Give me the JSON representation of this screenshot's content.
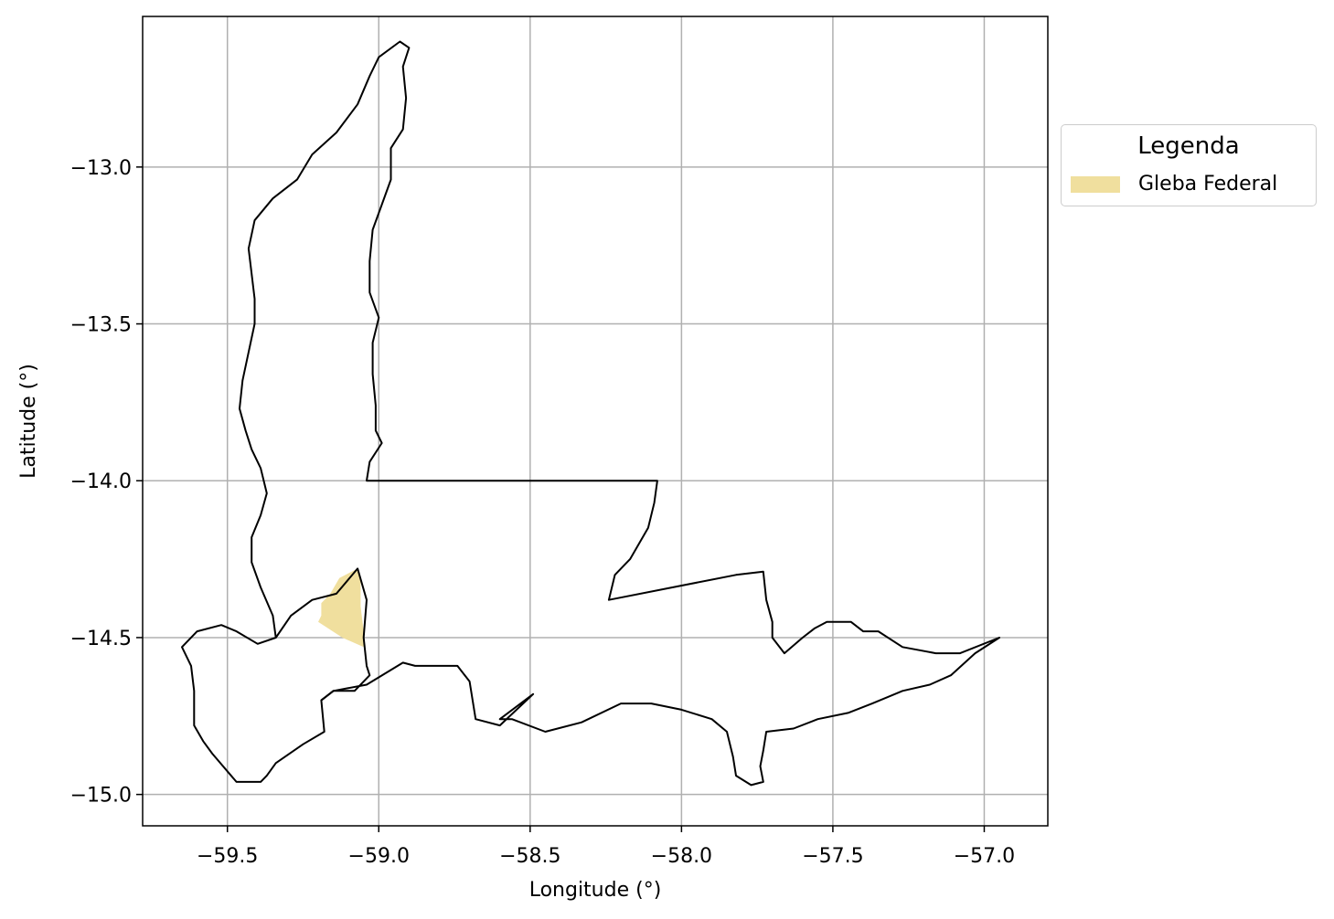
{
  "chart_data": {
    "type": "map",
    "xlabel": "Longitude (°)",
    "ylabel": "Latitude (°)",
    "xlim": [
      -59.78,
      -56.79
    ],
    "ylim": [
      -15.1,
      -12.52
    ],
    "x_ticks": [
      -59.5,
      -59.0,
      -58.5,
      -58.0,
      -57.5,
      -57.0
    ],
    "x_tick_labels": [
      "−59.5",
      "−59.0",
      "−58.5",
      "−58.0",
      "−57.5",
      "−57.0"
    ],
    "y_ticks": [
      -13.0,
      -13.5,
      -14.0,
      -14.5,
      -15.0
    ],
    "y_tick_labels": [
      "−13.0",
      "−13.5",
      "−14.0",
      "−14.5",
      "−15.0"
    ],
    "grid": true,
    "legend": {
      "title": "Legenda",
      "placement": "outside-right-top",
      "entries": [
        {
          "label": "Gleba Federal",
          "color": "#f0df9e"
        }
      ]
    },
    "boundary": {
      "stroke": "#000000",
      "points": [
        [
          -59.34,
          -14.5
        ],
        [
          -59.35,
          -14.43
        ],
        [
          -59.39,
          -14.34
        ],
        [
          -59.42,
          -14.26
        ],
        [
          -59.42,
          -14.18
        ],
        [
          -59.39,
          -14.11
        ],
        [
          -59.37,
          -14.04
        ],
        [
          -59.39,
          -13.96
        ],
        [
          -59.42,
          -13.9
        ],
        [
          -59.44,
          -13.84
        ],
        [
          -59.46,
          -13.77
        ],
        [
          -59.45,
          -13.68
        ],
        [
          -59.43,
          -13.59
        ],
        [
          -59.41,
          -13.5
        ],
        [
          -59.41,
          -13.42
        ],
        [
          -59.42,
          -13.34
        ],
        [
          -59.43,
          -13.26
        ],
        [
          -59.41,
          -13.17
        ],
        [
          -59.35,
          -13.1
        ],
        [
          -59.27,
          -13.04
        ],
        [
          -59.22,
          -12.96
        ],
        [
          -59.14,
          -12.89
        ],
        [
          -59.07,
          -12.8
        ],
        [
          -59.03,
          -12.71
        ],
        [
          -59.0,
          -12.65
        ],
        [
          -58.93,
          -12.6
        ],
        [
          -58.9,
          -12.62
        ],
        [
          -58.92,
          -12.68
        ],
        [
          -58.91,
          -12.78
        ],
        [
          -58.92,
          -12.88
        ],
        [
          -58.96,
          -12.94
        ],
        [
          -58.96,
          -13.04
        ],
        [
          -58.99,
          -13.12
        ],
        [
          -59.02,
          -13.2
        ],
        [
          -59.03,
          -13.3
        ],
        [
          -59.03,
          -13.4
        ],
        [
          -59.0,
          -13.48
        ],
        [
          -59.02,
          -13.56
        ],
        [
          -59.02,
          -13.66
        ],
        [
          -59.01,
          -13.76
        ],
        [
          -59.01,
          -13.84
        ],
        [
          -58.99,
          -13.88
        ],
        [
          -59.03,
          -13.94
        ],
        [
          -59.04,
          -14.0
        ],
        [
          -58.08,
          -14.0
        ],
        [
          -58.09,
          -14.07
        ],
        [
          -58.11,
          -14.15
        ],
        [
          -58.17,
          -14.25
        ],
        [
          -58.22,
          -14.3
        ],
        [
          -58.24,
          -14.38
        ],
        [
          -57.82,
          -14.3
        ],
        [
          -57.73,
          -14.29
        ],
        [
          -57.72,
          -14.38
        ],
        [
          -57.7,
          -14.45
        ],
        [
          -57.7,
          -14.5
        ],
        [
          -57.66,
          -14.55
        ],
        [
          -57.6,
          -14.5
        ],
        [
          -57.56,
          -14.47
        ],
        [
          -57.52,
          -14.45
        ],
        [
          -57.44,
          -14.45
        ],
        [
          -57.4,
          -14.48
        ],
        [
          -57.35,
          -14.48
        ],
        [
          -57.27,
          -14.53
        ],
        [
          -57.16,
          -14.55
        ],
        [
          -57.08,
          -14.55
        ],
        [
          -56.95,
          -14.5
        ],
        [
          -57.03,
          -14.55
        ],
        [
          -57.11,
          -14.62
        ],
        [
          -57.18,
          -14.65
        ],
        [
          -57.27,
          -14.67
        ],
        [
          -57.37,
          -14.71
        ],
        [
          -57.45,
          -14.74
        ],
        [
          -57.55,
          -14.76
        ],
        [
          -57.63,
          -14.79
        ],
        [
          -57.72,
          -14.8
        ],
        [
          -57.73,
          -14.86
        ],
        [
          -57.74,
          -14.91
        ],
        [
          -57.73,
          -14.96
        ],
        [
          -57.77,
          -14.97
        ],
        [
          -57.82,
          -14.94
        ],
        [
          -57.83,
          -14.88
        ],
        [
          -57.85,
          -14.8
        ],
        [
          -57.9,
          -14.76
        ],
        [
          -58.0,
          -14.73
        ],
        [
          -58.1,
          -14.71
        ],
        [
          -58.2,
          -14.71
        ],
        [
          -58.33,
          -14.77
        ],
        [
          -58.45,
          -14.8
        ],
        [
          -58.56,
          -14.76
        ],
        [
          -58.6,
          -14.76
        ],
        [
          -58.49,
          -14.68
        ],
        [
          -58.6,
          -14.78
        ],
        [
          -58.68,
          -14.76
        ],
        [
          -58.7,
          -14.64
        ],
        [
          -58.74,
          -14.59
        ],
        [
          -58.88,
          -14.59
        ],
        [
          -58.92,
          -14.58
        ],
        [
          -59.04,
          -14.65
        ],
        [
          -59.15,
          -14.67
        ],
        [
          -59.19,
          -14.7
        ],
        [
          -59.18,
          -14.8
        ],
        [
          -59.25,
          -14.84
        ],
        [
          -59.34,
          -14.9
        ],
        [
          -59.37,
          -14.94
        ],
        [
          -59.39,
          -14.96
        ],
        [
          -59.47,
          -14.96
        ],
        [
          -59.55,
          -14.87
        ],
        [
          -59.58,
          -14.83
        ],
        [
          -59.61,
          -14.78
        ],
        [
          -59.61,
          -14.67
        ],
        [
          -59.62,
          -14.59
        ],
        [
          -59.65,
          -14.53
        ],
        [
          -59.6,
          -14.48
        ],
        [
          -59.52,
          -14.46
        ],
        [
          -59.47,
          -14.48
        ],
        [
          -59.4,
          -14.52
        ],
        [
          -59.34,
          -14.5
        ]
      ],
      "inner_loop": [
        [
          -59.34,
          -14.5
        ],
        [
          -59.29,
          -14.43
        ],
        [
          -59.22,
          -14.38
        ],
        [
          -59.14,
          -14.36
        ],
        [
          -59.07,
          -14.28
        ],
        [
          -59.04,
          -14.38
        ],
        [
          -59.05,
          -14.5
        ],
        [
          -59.04,
          -14.59
        ],
        [
          -59.03,
          -14.62
        ],
        [
          -59.08,
          -14.67
        ],
        [
          -59.15,
          -14.67
        ],
        [
          -59.19,
          -14.7
        ]
      ]
    },
    "gleba_federal": {
      "fill": "#f0df9e",
      "points": [
        [
          -59.07,
          -14.28
        ],
        [
          -59.13,
          -14.31
        ],
        [
          -59.16,
          -14.36
        ],
        [
          -59.19,
          -14.39
        ],
        [
          -59.19,
          -14.43
        ],
        [
          -59.2,
          -14.45
        ],
        [
          -59.12,
          -14.5
        ],
        [
          -59.05,
          -14.53
        ],
        [
          -59.05,
          -14.48
        ],
        [
          -59.06,
          -14.4
        ],
        [
          -59.06,
          -14.32
        ],
        [
          -59.07,
          -14.28
        ]
      ]
    }
  }
}
